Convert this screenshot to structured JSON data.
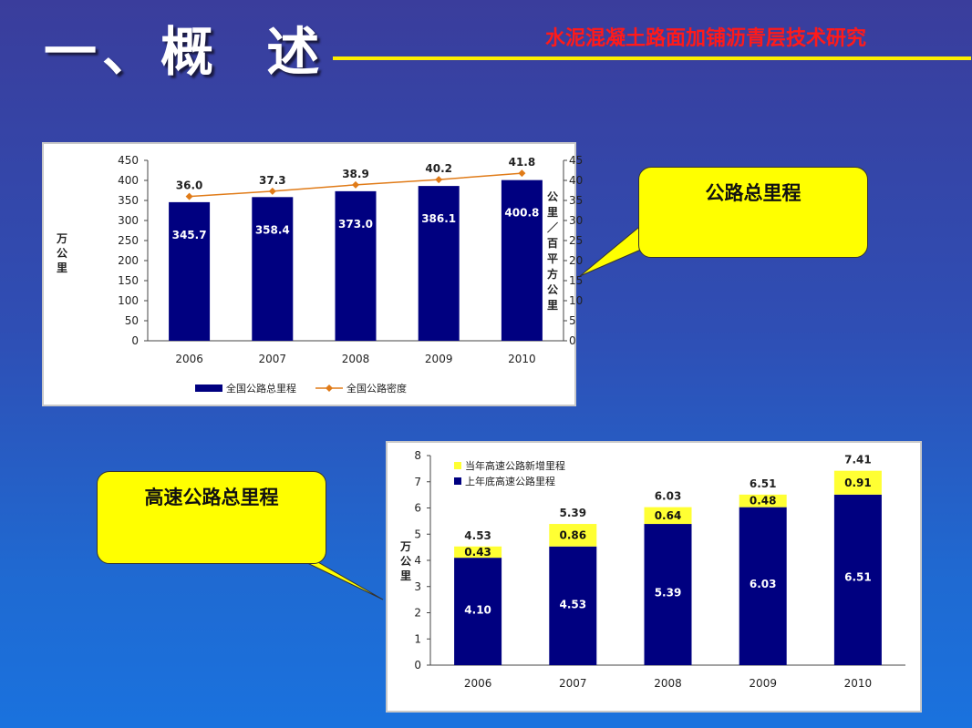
{
  "slide": {
    "title": "一、概  述",
    "subtitle": "水泥混凝土路面加铺沥青层技术研究",
    "colors": {
      "title_rule": "#ffee00",
      "subtitle": "#ff1a1a",
      "callout_fill": "#ffff00"
    }
  },
  "callouts": {
    "highway_total": "公路总里程",
    "expressway_total": "高速公路总里程"
  },
  "chart_data": [
    {
      "type": "bar",
      "categories": [
        "2006",
        "2007",
        "2008",
        "2009",
        "2010"
      ],
      "series": [
        {
          "name": "全国公路总里程",
          "values": [
            345.7,
            358.4,
            373.0,
            386.1,
            400.8
          ],
          "color": "#000080",
          "axis": "left"
        },
        {
          "name": "全国公路密度",
          "values": [
            36.0,
            37.3,
            38.9,
            40.2,
            41.8
          ],
          "color": "#e07b18",
          "axis": "right",
          "kind": "line"
        }
      ],
      "value_labels": [
        "345.7",
        "358.4",
        "373.0",
        "386.1",
        "400.8"
      ],
      "density_labels": [
        "36.0",
        "37.3",
        "38.9",
        "40.2",
        "41.8"
      ],
      "ylabel": "万公里",
      "y2label": "公里／百平方公里",
      "ylim": [
        0,
        450
      ],
      "y2lim": [
        0,
        45
      ],
      "yticks": [
        "0",
        "50",
        "100",
        "150",
        "200",
        "250",
        "300",
        "350",
        "400",
        "450"
      ],
      "y2ticks": [
        "0",
        "5",
        "10",
        "15",
        "20",
        "25",
        "30",
        "35",
        "40",
        "45"
      ],
      "legend_position": "bottom",
      "grid": false
    },
    {
      "type": "bar",
      "stacked": true,
      "categories": [
        "2006",
        "2007",
        "2008",
        "2009",
        "2010"
      ],
      "series": [
        {
          "name": "上年底高速公路里程",
          "values": [
            4.1,
            4.53,
            5.39,
            6.03,
            6.51
          ],
          "color": "#000080"
        },
        {
          "name": "当年高速公路新增里程",
          "values": [
            0.43,
            0.86,
            0.64,
            0.48,
            0.91
          ],
          "color": "#ffff33"
        }
      ],
      "base_labels": [
        "4.10",
        "4.53",
        "5.39",
        "6.03",
        "6.51"
      ],
      "added_labels": [
        "0.43",
        "0.86",
        "0.64",
        "0.48",
        "0.91"
      ],
      "totals": [
        4.53,
        5.39,
        6.03,
        6.51,
        7.41
      ],
      "total_labels": [
        "4.53",
        "5.39",
        "6.03",
        "6.51",
        "7.41"
      ],
      "ylabel": "万公里",
      "ylim": [
        0,
        8
      ],
      "yticks": [
        "0",
        "1",
        "2",
        "3",
        "4",
        "5",
        "6",
        "7",
        "8"
      ],
      "legend_position": "top-left",
      "grid": false
    }
  ]
}
